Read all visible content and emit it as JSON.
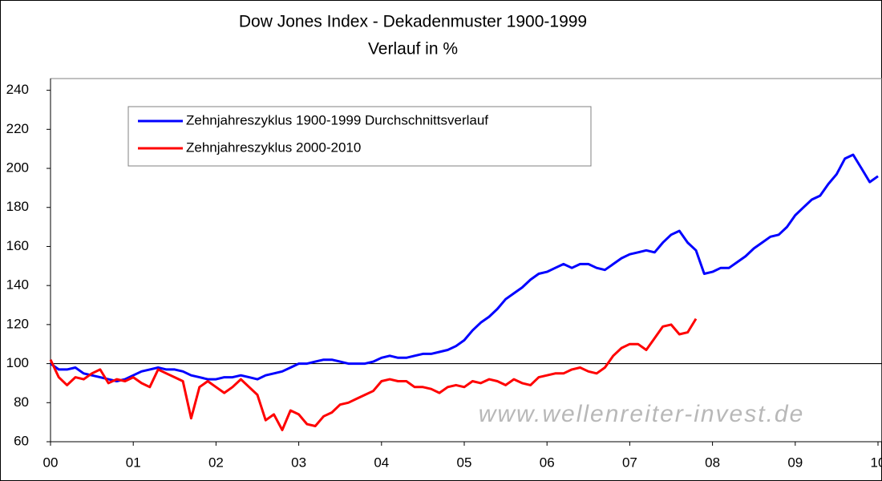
{
  "chart_data": {
    "type": "line",
    "title": "Dow Jones Index - Dekadenmuster 1900-1999",
    "subtitle": "Verlauf in %",
    "watermark": "www.wellenreiter-invest.de",
    "legend": "upper left",
    "hline": 100,
    "xlim": [
      0,
      10
    ],
    "ylim": [
      60,
      246
    ],
    "xticks": [
      {
        "value": 0,
        "label": "00"
      },
      {
        "value": 1,
        "label": "01"
      },
      {
        "value": 2,
        "label": "02"
      },
      {
        "value": 3,
        "label": "03"
      },
      {
        "value": 4,
        "label": "04"
      },
      {
        "value": 5,
        "label": "05"
      },
      {
        "value": 6,
        "label": "06"
      },
      {
        "value": 7,
        "label": "07"
      },
      {
        "value": 8,
        "label": "08"
      },
      {
        "value": 9,
        "label": "09"
      },
      {
        "value": 10,
        "label": "10"
      }
    ],
    "yticks": [
      60,
      80,
      100,
      120,
      140,
      160,
      180,
      200,
      220,
      240
    ],
    "x": [
      0,
      0.1,
      0.2,
      0.3,
      0.4,
      0.5,
      0.6,
      0.7,
      0.8,
      0.9,
      1,
      1.1,
      1.2,
      1.3,
      1.4,
      1.5,
      1.6,
      1.7,
      1.8,
      1.9,
      2,
      2.1,
      2.2,
      2.3,
      2.4,
      2.5,
      2.6,
      2.7,
      2.8,
      2.9,
      3,
      3.1,
      3.2,
      3.3,
      3.4,
      3.5,
      3.6,
      3.7,
      3.8,
      3.9,
      4,
      4.1,
      4.2,
      4.3,
      4.4,
      4.5,
      4.6,
      4.7,
      4.8,
      4.9,
      5,
      5.1,
      5.2,
      5.3,
      5.4,
      5.5,
      5.6,
      5.7,
      5.8,
      5.9,
      6,
      6.1,
      6.2,
      6.3,
      6.4,
      6.5,
      6.6,
      6.7,
      6.8,
      6.9,
      7,
      7.1,
      7.2,
      7.3,
      7.4,
      7.5,
      7.6,
      7.7,
      7.8,
      7.9,
      8,
      8.1,
      8.2,
      8.3,
      8.4,
      8.5,
      8.6,
      8.7,
      8.8,
      8.9,
      9,
      9.1,
      9.2,
      9.3,
      9.4,
      9.5,
      9.6,
      9.7,
      9.8,
      9.9,
      10
    ],
    "series": [
      {
        "name": "Zehnjahreszyklus 1900-1999 Durchschnittsverlauf",
        "color": "#0000ff",
        "values": [
          100,
          97,
          97,
          98,
          95,
          94,
          93,
          92,
          91,
          92,
          94,
          96,
          97,
          98,
          97,
          97,
          96,
          94,
          93,
          92,
          92,
          93,
          93,
          94,
          93,
          92,
          94,
          95,
          96,
          98,
          100,
          100,
          101,
          102,
          102,
          101,
          100,
          100,
          100,
          101,
          103,
          104,
          103,
          103,
          104,
          105,
          105,
          106,
          107,
          109,
          112,
          117,
          121,
          124,
          128,
          133,
          136,
          139,
          143,
          146,
          147,
          149,
          151,
          149,
          151,
          151,
          149,
          148,
          151,
          154,
          156,
          157,
          158,
          157,
          162,
          166,
          168,
          162,
          158,
          146,
          147,
          149,
          149,
          152,
          155,
          159,
          162,
          165,
          166,
          170,
          176,
          180,
          184,
          186,
          192,
          197,
          205,
          207,
          200,
          193,
          196
        ]
      },
      {
        "name": "Zehnjahreszyklus 2000-2010",
        "color": "#ff0000",
        "values": [
          102,
          93,
          89,
          93,
          92,
          95,
          97,
          90,
          92,
          91,
          93,
          90,
          88,
          97,
          95,
          93,
          91,
          72,
          88,
          91,
          88,
          85,
          88,
          92,
          88,
          84,
          71,
          74,
          66,
          76,
          74,
          69,
          68,
          73,
          75,
          79,
          80,
          82,
          84,
          86,
          91,
          92,
          91,
          91,
          88,
          88,
          87,
          85,
          88,
          89,
          88,
          91,
          90,
          92,
          91,
          89,
          92,
          90,
          89,
          93,
          94,
          95,
          95,
          97,
          98,
          96,
          95,
          98,
          104,
          108,
          110,
          110,
          107,
          113,
          119,
          120,
          115,
          116,
          123,
          null,
          null,
          null,
          null,
          null,
          null,
          null,
          null,
          null,
          null,
          null,
          null,
          null,
          null,
          null,
          null,
          null,
          null,
          null,
          null,
          null,
          null
        ]
      }
    ]
  }
}
